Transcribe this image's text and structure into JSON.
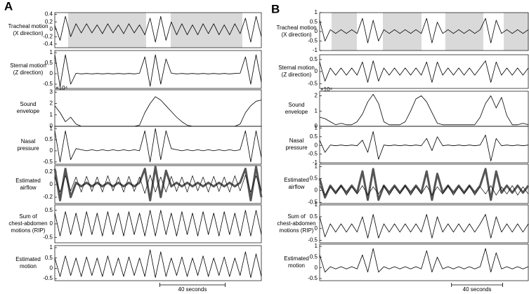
{
  "figure": {
    "panels": [
      {
        "label": "A",
        "scale_bar": {
          "label": "40 seconds",
          "start": 64,
          "end": 104
        }
      },
      {
        "label": "B",
        "scale_bar": {
          "label": "40 seconds",
          "start": 103,
          "end": 143
        }
      }
    ]
  },
  "chart_data": [
    {
      "type": "line",
      "ylabel": [
        "Tracheal motion",
        "(X direction)"
      ],
      "xlim": [
        0,
        126
      ],
      "ylim": [
        -0.5,
        0.45
      ],
      "yticks": [
        0.4,
        0.2,
        0,
        -0.2,
        -0.4
      ],
      "shaded": [
        [
          8.1,
          55.7
        ],
        [
          70.7,
          114.4
        ]
      ],
      "shade_color": "#d9d9d9",
      "series": [
        {
          "color": "#000",
          "linewidth": 0.8,
          "values": [
            0.1,
            -0.3,
            0.35,
            -0.2,
            0.15,
            -0.1,
            0.15,
            -0.1,
            0.12,
            -0.12,
            0.15,
            -0.1,
            0.12,
            -0.12,
            0.15,
            -0.1,
            0.12,
            -0.15,
            0.3,
            -0.35,
            0.35,
            -0.3,
            0.2,
            -0.15,
            0.15,
            -0.15,
            0.12,
            -0.15,
            0.15,
            -0.12,
            0.15,
            -0.15,
            0.12,
            -0.15,
            0.15,
            -0.12,
            0.3,
            -0.35,
            0.35,
            -0.2
          ]
        }
      ]
    },
    {
      "type": "line",
      "ylabel": [
        "Sternal motion",
        "(Z direction)"
      ],
      "xlim": [
        0,
        126
      ],
      "ylim": [
        -0.7,
        1.1
      ],
      "yticks": [
        1,
        0.5,
        0,
        -0.5
      ],
      "series": [
        {
          "color": "#000",
          "linewidth": 0.8,
          "values": [
            0.9,
            -0.6,
            0.9,
            -0.5,
            0.02,
            -0.01,
            0.01,
            -0.01,
            0.01,
            -0.01,
            0.01,
            -0.01,
            0.01,
            -0.01,
            0.01,
            -0.01,
            0.02,
            0.8,
            -0.6,
            0.9,
            -0.5,
            0.7,
            0.02,
            -0.01,
            0.01,
            -0.01,
            0.01,
            -0.01,
            0.01,
            -0.01,
            0.01,
            -0.01,
            0.01,
            -0.01,
            0.01,
            0.02,
            0.8,
            -0.5,
            0.9,
            -0.4
          ]
        }
      ]
    },
    {
      "type": "line",
      "ylabel": [
        "Sound",
        "envelope"
      ],
      "exponent": "×10⁴",
      "xlim": [
        0,
        126
      ],
      "ylim": [
        0,
        3.2
      ],
      "yticks": [
        3,
        2,
        1,
        0
      ],
      "series": [
        {
          "color": "#000",
          "linewidth": 0.8,
          "values": [
            1.8,
            1.2,
            0.4,
            0.8,
            0.2,
            0,
            0,
            0,
            0,
            0,
            0,
            0,
            0,
            0,
            0,
            0,
            0.1,
            1.2,
            2.0,
            2.6,
            2.3,
            1.8,
            1.3,
            0.8,
            0.4,
            0.1,
            0,
            0,
            0,
            0,
            0,
            0,
            0,
            0,
            0,
            0.2,
            1.2,
            1.8,
            2.2,
            2.3
          ]
        }
      ]
    },
    {
      "type": "line",
      "ylabel": [
        "Nasal",
        "pressure"
      ],
      "xlim": [
        0,
        126
      ],
      "ylim": [
        -0.6,
        1.1
      ],
      "yticks": [
        1,
        0.5,
        0,
        -0.5
      ],
      "series": [
        {
          "color": "#000",
          "linewidth": 0.8,
          "values": [
            0.9,
            -0.5,
            0.9,
            -0.4,
            0.1,
            0.05,
            0,
            0.05,
            0,
            0.05,
            0,
            0.05,
            0,
            0.05,
            0,
            0.05,
            0,
            0.9,
            -0.5,
            1.0,
            -0.4,
            0.9,
            0.1,
            0.05,
            0,
            0.05,
            0,
            0.05,
            0,
            0.05,
            0,
            0.05,
            0,
            0.05,
            0,
            0.05,
            0.9,
            -0.5,
            0.9,
            -0.3
          ]
        }
      ]
    },
    {
      "type": "line",
      "ylabel": [
        "Estimated",
        "airflow"
      ],
      "xlim": [
        0,
        126
      ],
      "ylim": [
        -0.3,
        0.3
      ],
      "yticks": [
        0.2,
        0,
        -0.2
      ],
      "series": [
        {
          "color": "#555",
          "linewidth": 3,
          "values": [
            0.25,
            -0.25,
            0.25,
            -0.2,
            0.03,
            -0.03,
            0.03,
            -0.03,
            0.03,
            -0.03,
            0.03,
            -0.03,
            0.03,
            -0.03,
            0.03,
            -0.03,
            0.03,
            0.25,
            -0.25,
            0.28,
            -0.2,
            0.22,
            -0.03,
            0.03,
            -0.03,
            0.03,
            -0.03,
            0.03,
            -0.03,
            0.03,
            -0.03,
            0.03,
            -0.03,
            0.03,
            -0.03,
            0.03,
            0.25,
            -0.25,
            0.28,
            -0.2
          ]
        },
        {
          "color": "#000",
          "linewidth": 0.7,
          "values": [
            0.12,
            -0.12,
            0.14,
            -0.1,
            0.12,
            -0.12,
            0.13,
            -0.11,
            0.12,
            -0.12,
            0.14,
            -0.1,
            0.12,
            -0.12,
            0.13,
            -0.11,
            0.12,
            -0.14,
            0.15,
            -0.12,
            0.12,
            -0.12,
            0.13,
            -0.11,
            0.12,
            -0.12,
            0.14,
            -0.1,
            0.12,
            -0.12,
            0.13,
            -0.11,
            0.12,
            -0.12,
            0.14,
            -0.1,
            0.15,
            -0.12,
            0.14,
            -0.1
          ]
        }
      ]
    },
    {
      "type": "line",
      "ylabel": [
        "Sum of",
        "chest-abdomen",
        "motions (RIP)"
      ],
      "xlim": [
        0,
        126
      ],
      "ylim": [
        -0.7,
        0.7
      ],
      "yticks": [
        0.5,
        0,
        -0.5
      ],
      "series": [
        {
          "color": "#000",
          "linewidth": 0.8,
          "values": [
            0.4,
            -0.45,
            0.45,
            -0.4,
            0.4,
            -0.45,
            0.45,
            -0.4,
            0.4,
            -0.45,
            0.45,
            -0.4,
            0.4,
            -0.45,
            0.45,
            -0.4,
            0.4,
            -0.45,
            0.5,
            -0.45,
            0.5,
            -0.4,
            0.4,
            -0.45,
            0.45,
            -0.4,
            0.4,
            -0.45,
            0.45,
            -0.4,
            0.4,
            -0.45,
            0.45,
            -0.4,
            0.4,
            -0.45,
            0.5,
            -0.45,
            0.5,
            -0.4
          ]
        }
      ]
    },
    {
      "type": "line",
      "ylabel": [
        "Estimated",
        "motion"
      ],
      "xlim": [
        0,
        126
      ],
      "ylim": [
        -0.6,
        1.1
      ],
      "yticks": [
        1,
        0.5,
        0,
        -0.5
      ],
      "series": [
        {
          "color": "#000",
          "linewidth": 0.8,
          "values": [
            0.5,
            -0.4,
            0.6,
            -0.35,
            0.5,
            -0.4,
            0.55,
            -0.35,
            0.5,
            -0.4,
            0.6,
            -0.35,
            0.5,
            -0.4,
            0.55,
            -0.35,
            0.5,
            -0.4,
            0.9,
            -0.45,
            0.8,
            -0.4,
            0.5,
            -0.35,
            0.55,
            -0.4,
            0.5,
            -0.35,
            0.6,
            -0.4,
            0.5,
            -0.35,
            0.55,
            -0.4,
            0.5,
            -0.35,
            0.8,
            -0.45,
            0.7,
            -0.4
          ]
        }
      ]
    },
    {
      "type": "line",
      "ylabel": [
        "Tracheal motion",
        "(X direction)"
      ],
      "xlim": [
        0,
        163
      ],
      "ylim": [
        -1,
        1
      ],
      "yticks": [
        1,
        0.5,
        0,
        -0.5,
        -1
      ],
      "shaded": [
        [
          9.3,
          29.1
        ],
        [
          49.4,
          79.6
        ],
        [
          98.2,
          127.9
        ],
        [
          143.8,
          163
        ]
      ],
      "shade_color": "#d9d9d9",
      "series": [
        {
          "color": "#000",
          "linewidth": 0.8,
          "values": [
            0.6,
            -0.5,
            0.1,
            -0.1,
            0.1,
            -0.1,
            0.1,
            -0.1,
            0.7,
            -0.6,
            0.6,
            -0.5,
            0.1,
            -0.1,
            0.1,
            -0.1,
            0.1,
            -0.1,
            0.1,
            -0.1,
            0.7,
            -0.6,
            0.5,
            -0.1,
            0.1,
            -0.1,
            0.1,
            -0.1,
            0.1,
            -0.1,
            0.1,
            0.7,
            -0.6,
            0.6,
            -0.1,
            0.1,
            -0.1,
            0.1,
            -0.1,
            0.1
          ]
        }
      ]
    },
    {
      "type": "line",
      "ylabel": [
        "Sternal motion",
        "(Z direction)"
      ],
      "xlim": [
        0,
        163
      ],
      "ylim": [
        -0.7,
        0.7
      ],
      "yticks": [
        0.5,
        0,
        -0.5
      ],
      "series": [
        {
          "color": "#000",
          "linewidth": 0.8,
          "values": [
            0.4,
            -0.4,
            0.15,
            -0.15,
            0.15,
            -0.15,
            0.15,
            -0.15,
            0.4,
            -0.45,
            0.45,
            -0.4,
            0.15,
            -0.15,
            0.15,
            -0.15,
            0.15,
            -0.15,
            0.15,
            -0.15,
            0.4,
            -0.45,
            0.4,
            -0.15,
            0.15,
            -0.15,
            0.15,
            -0.15,
            0.15,
            -0.15,
            0.15,
            0.45,
            -0.45,
            0.4,
            -0.15,
            0.15,
            -0.15,
            0.15,
            -0.15,
            0.15
          ]
        }
      ]
    },
    {
      "type": "line",
      "ylabel": [
        "Sound",
        "envelope"
      ],
      "exponent": "×10⁴",
      "xlim": [
        0,
        163
      ],
      "ylim": [
        0,
        2.3
      ],
      "yticks": [
        2,
        1,
        0
      ],
      "series": [
        {
          "color": "#000",
          "linewidth": 0.8,
          "values": [
            0.6,
            0.5,
            0.3,
            0.1,
            0.2,
            0.1,
            0.1,
            0.3,
            0.8,
            1.6,
            2.1,
            1.5,
            0.3,
            0.1,
            0.1,
            0.1,
            0.3,
            1.0,
            1.8,
            2.0,
            1.6,
            0.9,
            0.2,
            0.1,
            0.1,
            0.1,
            0.1,
            0.1,
            0.1,
            0.1,
            0.6,
            1.5,
            2.0,
            1.2,
            1.9,
            0.7,
            0.1,
            0.1,
            0.2,
            0.1
          ]
        }
      ]
    },
    {
      "type": "line",
      "ylabel": [
        "Nasal",
        "pressure"
      ],
      "xlim": [
        0,
        163
      ],
      "ylim": [
        -1,
        1.1
      ],
      "yticks": [
        1,
        0.5,
        0,
        -0.5,
        -1
      ],
      "series": [
        {
          "color": "#000",
          "linewidth": 0.8,
          "values": [
            0.3,
            -0.4,
            0.02,
            -0.02,
            0.02,
            -0.02,
            0.02,
            -0.02,
            0.3,
            -0.4,
            0.8,
            -0.8,
            0.02,
            -0.02,
            0.02,
            -0.02,
            0.02,
            -0.02,
            0.02,
            -0.02,
            0.4,
            -0.3,
            0.5,
            -0.02,
            0.02,
            -0.02,
            0.02,
            -0.02,
            0.02,
            -0.02,
            0.02,
            0.6,
            -0.9,
            0.4,
            -0.02,
            0.02,
            -0.02,
            0.02,
            -0.02,
            0.02
          ]
        }
      ]
    },
    {
      "type": "line",
      "ylabel": [
        "Estimated",
        "airflow"
      ],
      "xlim": [
        0,
        163
      ],
      "ylim": [
        -0.55,
        1.1
      ],
      "yticks": [
        1,
        0.5,
        0,
        -0.5
      ],
      "series": [
        {
          "color": "#555",
          "linewidth": 3,
          "values": [
            0.5,
            -0.3,
            0.2,
            -0.1,
            0.2,
            -0.1,
            0.2,
            -0.1,
            0.8,
            -0.4,
            0.9,
            -0.4,
            0.2,
            -0.1,
            0.2,
            -0.1,
            0.2,
            -0.1,
            0.2,
            -0.1,
            0.8,
            -0.4,
            0.7,
            -0.1,
            0.2,
            -0.1,
            0.2,
            -0.1,
            0.2,
            -0.1,
            0.2,
            0.9,
            -0.4,
            0.8,
            -0.1,
            0.2,
            -0.1,
            0.2,
            -0.1,
            0.2
          ]
        },
        {
          "color": "#000",
          "linewidth": 0.7,
          "values": [
            0.2,
            -0.2,
            0.15,
            -0.15,
            0.2,
            -0.2,
            0.15,
            -0.15,
            0.2,
            -0.2,
            0.15,
            -0.15,
            0.2,
            -0.2,
            0.15,
            -0.15,
            0.2,
            -0.2,
            0.15,
            -0.15,
            0.2,
            -0.2,
            0.15,
            -0.15,
            0.2,
            -0.2,
            0.15,
            -0.15,
            0.2,
            -0.2,
            0.15,
            -0.15,
            0.2,
            -0.2,
            0.15,
            -0.15,
            0.2,
            -0.2,
            0.15,
            -0.15
          ]
        }
      ]
    },
    {
      "type": "line",
      "ylabel": [
        "Sum of",
        "chest-abdomen",
        "motions (RIP)"
      ],
      "xlim": [
        0,
        163
      ],
      "ylim": [
        -0.6,
        1
      ],
      "yticks": [
        1,
        0.5,
        0,
        -0.5
      ],
      "series": [
        {
          "color": "#000",
          "linewidth": 0.8,
          "values": [
            0.5,
            -0.35,
            0.2,
            -0.15,
            0.2,
            -0.15,
            0.2,
            -0.15,
            0.5,
            -0.4,
            0.6,
            -0.4,
            0.2,
            -0.15,
            0.2,
            -0.15,
            0.2,
            -0.15,
            0.2,
            -0.15,
            0.6,
            -0.4,
            0.5,
            -0.15,
            0.2,
            -0.15,
            0.2,
            -0.15,
            0.2,
            -0.15,
            0.2,
            0.6,
            -0.4,
            0.5,
            -0.15,
            0.2,
            -0.15,
            0.2,
            -0.15,
            0.2
          ]
        }
      ]
    },
    {
      "type": "line",
      "ylabel": [
        "Estimated",
        "motion"
      ],
      "xlim": [
        0,
        163
      ],
      "ylim": [
        -0.6,
        1.1
      ],
      "yticks": [
        1,
        0.5,
        0,
        -0.5
      ],
      "series": [
        {
          "color": "#000",
          "linewidth": 0.8,
          "values": [
            0.6,
            -0.2,
            0.05,
            -0.05,
            0.05,
            -0.05,
            0.05,
            -0.05,
            0.6,
            -0.2,
            0.9,
            -0.2,
            0.05,
            -0.05,
            0.05,
            -0.05,
            0.05,
            -0.05,
            0.05,
            -0.05,
            0.8,
            -0.2,
            0.5,
            -0.05,
            0.05,
            -0.05,
            0.05,
            -0.05,
            0.05,
            -0.05,
            0.05,
            0.9,
            -0.2,
            0.7,
            -0.05,
            0.05,
            -0.05,
            0.05,
            -0.05,
            0.05
          ]
        }
      ]
    }
  ]
}
